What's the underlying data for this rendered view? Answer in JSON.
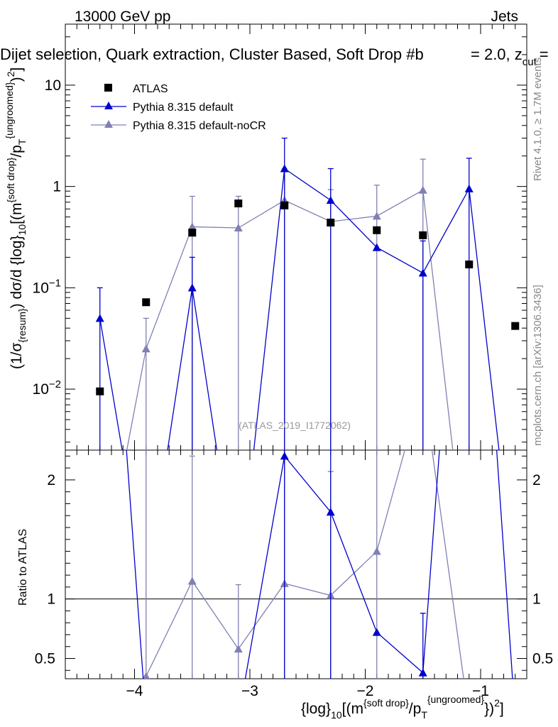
{
  "header": {
    "energy": "13000 GeV pp",
    "category": "Jets",
    "title": "Dijet selection, Quark extraction, Cluster Based, Soft Drop #b",
    "title_tail": "= 2.0, z",
    "title_tail_sub": "cut",
    "title_tail_end": "="
  },
  "side": {
    "rivet": "Rivet 4.1.0, ≥ 1.7M events",
    "mcplots": "mcplots.cern.ch [arXiv:1306.3436]"
  },
  "watermark": "(ATLAS_2019_I1772062)",
  "axes": {
    "y_main_label": "(1/σ{resum}) dσ/d {log}10[(m{soft drop}/pT{ungroomed})2]",
    "y_ratio_label": "Ratio to ATLAS",
    "x_label": "{log}10[(m{soft drop}/pT{ungroomed})2]"
  },
  "legend": {
    "data": "ATLAS",
    "mc1": "Pythia 8.315 default",
    "mc2": "Pythia 8.315 default-noCR"
  },
  "colors": {
    "data": "#000000",
    "mc1": "#0000cc",
    "mc2": "#8080b3"
  },
  "chart_data": {
    "type": "scatter",
    "xlim": [
      -4.6,
      -0.6
    ],
    "ylim_main": [
      0.0025,
      40
    ],
    "ylim_ratio": [
      0.33,
      2.25
    ],
    "x_ticks": [
      -4,
      -3,
      -2,
      -1
    ],
    "x_tick_labels": [
      "−4",
      "−3",
      "−2",
      "−1"
    ],
    "y_main_ticks": [
      0.01,
      0.1,
      1,
      10
    ],
    "y_ratio_ticks": [
      0.5,
      1,
      2
    ],
    "y_ratio_tick_labels": [
      "0.5",
      "1",
      "2"
    ],
    "series": [
      {
        "name": "ATLAS",
        "x": [
          -4.3,
          -3.9,
          -3.5,
          -3.1,
          -2.7,
          -2.3,
          -1.9,
          -1.5,
          -1.1,
          -0.7
        ],
        "values": [
          0.0095,
          0.072,
          0.35,
          0.68,
          0.65,
          0.44,
          0.37,
          0.33,
          0.17,
          0.042
        ]
      },
      {
        "name": "Pythia 8.315 default",
        "x": [
          -4.3,
          -3.9,
          -3.5,
          -3.1,
          -2.7,
          -2.3,
          -1.9,
          -1.5,
          -1.1,
          -0.7
        ],
        "values": [
          0.05,
          0.0001,
          0.1,
          0.0001,
          1.5,
          0.73,
          0.25,
          0.14,
          0.95,
          0.0001
        ],
        "err_up": [
          0.1,
          null,
          0.2,
          null,
          3.0,
          1.5,
          null,
          0.29,
          1.9,
          null
        ],
        "err_down": [
          0.0001,
          null,
          0.0001,
          null,
          0.0001,
          0.0001,
          0.0001,
          0.0001,
          0.0001,
          null
        ],
        "ratio": [
          5.3,
          0.0,
          0.29,
          0.0,
          2.2,
          1.73,
          0.72,
          0.38,
          5.6,
          0.0
        ],
        "ratio_err_up": [
          null,
          null,
          null,
          null,
          null,
          null,
          null,
          0.88,
          null,
          null
        ]
      },
      {
        "name": "Pythia 8.315 default-noCR",
        "x": [
          -4.3,
          -3.9,
          -3.5,
          -3.1,
          -2.7,
          -2.3,
          -1.9,
          -1.5,
          -1.1,
          -0.7
        ],
        "values": [
          0.0001,
          0.025,
          0.4,
          0.39,
          0.73,
          0.45,
          0.51,
          0.92,
          0.0001,
          0.0001
        ],
        "err_up": [
          null,
          0.05,
          0.8,
          0.8,
          1.5,
          0.93,
          1.03,
          1.86,
          null,
          null
        ],
        "err_down": [
          null,
          0.0001,
          0.0001,
          0.0001,
          0.0001,
          0.0001,
          0.0001,
          0.0001,
          null,
          null
        ],
        "ratio": [
          0.0,
          0.35,
          1.15,
          0.58,
          1.13,
          1.03,
          1.4,
          2.8,
          0.0,
          0.0
        ],
        "ratio_err_up": [
          null,
          null,
          2.2,
          1.12,
          null,
          2.07,
          null,
          null,
          null,
          null
        ]
      }
    ]
  }
}
